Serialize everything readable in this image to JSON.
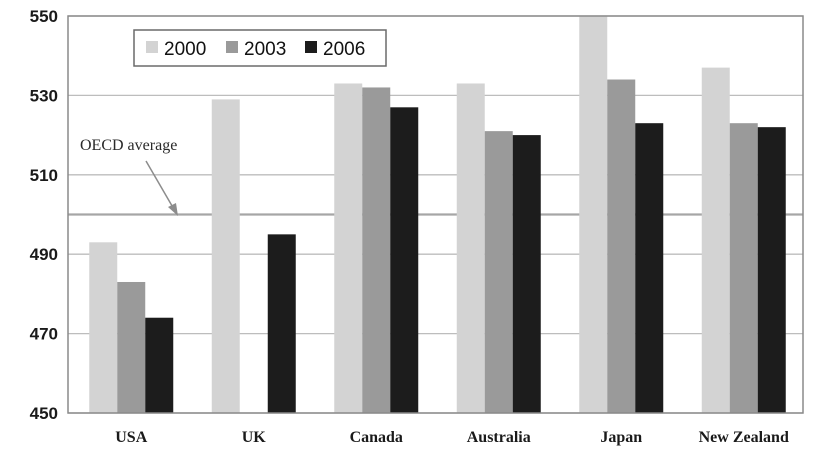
{
  "chart_data": {
    "type": "bar",
    "categories": [
      "USA",
      "UK",
      "Canada",
      "Australia",
      "Japan",
      "New Zealand"
    ],
    "series": [
      {
        "name": "2000",
        "color": "#d3d3d3",
        "values": [
          493,
          529,
          533,
          533,
          550,
          537
        ]
      },
      {
        "name": "2003",
        "color": "#9a9a9a",
        "values": [
          483,
          null,
          532,
          521,
          534,
          523
        ]
      },
      {
        "name": "2006",
        "color": "#1c1c1c",
        "values": [
          474,
          495,
          527,
          520,
          523,
          522
        ]
      }
    ],
    "ylim": [
      450,
      550
    ],
    "yticks": [
      "450",
      "470",
      "490",
      "510",
      "530",
      "550"
    ],
    "grid": true,
    "legend_position": "top-left",
    "reference_line": {
      "label": "OECD average",
      "value": 500
    }
  }
}
